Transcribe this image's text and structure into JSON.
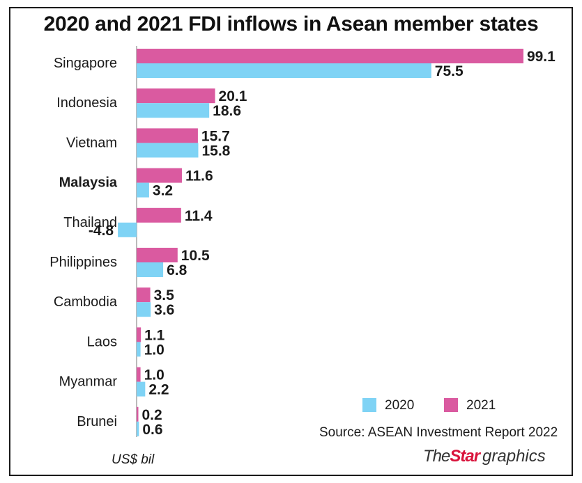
{
  "title": "2020 and 2021 FDI inflows in Asean member states",
  "source": "Source: ASEAN Investment Report 2022",
  "unit": "US$ bil",
  "brand": {
    "the": "The",
    "star": "Star",
    "graphics": "graphics"
  },
  "colors": {
    "y2020": "#7fd3f5",
    "y2021": "#da5aa0",
    "negative": "#e02020",
    "text": "#1a1a1a"
  },
  "chart_data": {
    "type": "bar",
    "orientation": "horizontal",
    "categories": [
      "Singapore",
      "Indonesia",
      "Vietnam",
      "Malaysia",
      "Thailand",
      "Philippines",
      "Cambodia",
      "Laos",
      "Myanmar",
      "Brunei"
    ],
    "highlight": "Malaysia",
    "series": [
      {
        "name": "2021",
        "color": "#da5aa0",
        "values": [
          99.1,
          20.1,
          15.7,
          11.6,
          11.4,
          10.5,
          3.5,
          1.1,
          1.0,
          0.2
        ],
        "labels": [
          "99.1",
          "20.1",
          "15.7",
          "11.6",
          "11.4",
          "10.5",
          "3.5",
          "1.1",
          "1.0",
          "0.2"
        ]
      },
      {
        "name": "2020",
        "color": "#7fd3f5",
        "values": [
          75.5,
          18.6,
          15.8,
          3.2,
          -4.8,
          6.8,
          3.6,
          1.0,
          2.2,
          0.6
        ],
        "labels": [
          "75.5",
          "18.6",
          "15.8",
          "3.2",
          "-4.8",
          "6.8",
          "3.6",
          "1.0",
          "2.2",
          "0.6"
        ]
      }
    ],
    "legend": [
      "2020",
      "2021"
    ],
    "legend_position": "bottom-right",
    "xlim": [
      -5,
      100
    ],
    "grid": false
  }
}
